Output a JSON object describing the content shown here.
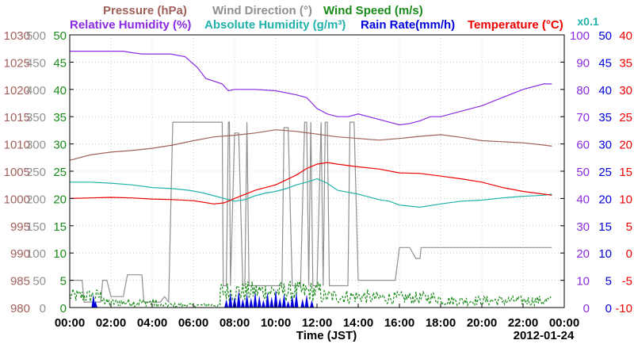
{
  "chart_data": {
    "type": "line",
    "title_lines": [
      [
        {
          "text": "Pressure (hPa)",
          "color": "#a0605a"
        },
        {
          "text": "Wind Direction (°)",
          "color": "#909090"
        },
        {
          "text": "Wind Speed (m/s)",
          "color": "#1a8a1a"
        }
      ],
      [
        {
          "text": "Relative Humidity (%)",
          "color": "#8a2be2"
        },
        {
          "text": "Absolute Humidity (g/m³)",
          "color": "#20b2aa"
        },
        {
          "text": "Rain Rate(mm/h)",
          "color": "#0000dd"
        },
        {
          "text": "Temperature (°C)",
          "color": "#ee0000"
        }
      ]
    ],
    "rain_scale_note": "x0.1",
    "xlabel": "Time (JST)",
    "date_label": "2012-01-24",
    "x_ticks": [
      "00:00",
      "02:00",
      "04:00",
      "06:00",
      "08:00",
      "10:00",
      "12:00",
      "14:00",
      "16:00",
      "18:00",
      "20:00",
      "22:00",
      "00:00"
    ],
    "xlim_hours": [
      0,
      24
    ],
    "left_axes": [
      {
        "name": "pressure",
        "color": "#a0605a",
        "ticks": [
          "1030",
          "1025",
          "1020",
          "1015",
          "1010",
          "1005",
          "1000",
          "995",
          "990",
          "985",
          "980"
        ]
      },
      {
        "name": "wind_direction",
        "color": "#909090",
        "ticks": [
          "500",
          "450",
          "400",
          "350",
          "300",
          "250",
          "200",
          "150",
          "100",
          "50",
          "0"
        ]
      },
      {
        "name": "wind_speed",
        "color": "#1a8a1a",
        "ticks": [
          "50",
          "45",
          "40",
          "35",
          "30",
          "25",
          "20",
          "15",
          "10",
          "5",
          "0"
        ]
      }
    ],
    "right_axes": [
      {
        "name": "relative_humidity",
        "color": "#8a2be2",
        "ticks": [
          "100",
          "90",
          "80",
          "70",
          "60",
          "50",
          "40",
          "30",
          "20",
          "10",
          "0"
        ]
      },
      {
        "name": "rain_rate",
        "color": "#0000dd",
        "ticks": [
          "50",
          "45",
          "40",
          "35",
          "30",
          "25",
          "20",
          "15",
          "10",
          "5",
          "0"
        ]
      },
      {
        "name": "temperature",
        "color": "#ee0000",
        "ticks": [
          "40",
          "35",
          "30",
          "25",
          "20",
          "15",
          "10",
          "5",
          "0",
          "-5",
          "-10"
        ]
      }
    ],
    "grid": true,
    "series": [
      {
        "name": "Relative Humidity (%)",
        "color": "#8a2be2",
        "axis_range": [
          0,
          100
        ],
        "x": [
          0,
          2.6,
          3,
          3.5,
          4.9,
          5.6,
          6.2,
          6.6,
          7.4,
          7.7,
          8,
          9,
          10,
          11,
          11.5,
          12,
          12.5,
          13,
          13.5,
          14,
          14.5,
          15,
          15.5,
          16,
          16.5,
          17,
          17.5,
          18,
          19,
          20,
          21,
          22,
          23,
          23.4
        ],
        "y": [
          94,
          94,
          93.5,
          93,
          93,
          92,
          88,
          84,
          82,
          79.5,
          80,
          80,
          79.5,
          78,
          77,
          73,
          71,
          70,
          70,
          71,
          70,
          69,
          68,
          67,
          67.5,
          68.5,
          70,
          70,
          72,
          74,
          77,
          80,
          82,
          82
        ]
      },
      {
        "name": "Pressure (hPa)",
        "color": "#a0605a",
        "axis_range": [
          980,
          1030
        ],
        "x": [
          0,
          1,
          2,
          3,
          4,
          5,
          6,
          7,
          8,
          9,
          10,
          11,
          12,
          13,
          14,
          15,
          16,
          17,
          18,
          19,
          20,
          21,
          22,
          23,
          23.4
        ],
        "y": [
          1007,
          1008,
          1008.5,
          1008.8,
          1009.2,
          1009.8,
          1010.6,
          1011.3,
          1011.6,
          1012,
          1012.6,
          1012.3,
          1011.8,
          1011.3,
          1011,
          1010.7,
          1011,
          1011.4,
          1011.7,
          1011.2,
          1010.6,
          1010.4,
          1010.2,
          1009.8,
          1009.6
        ]
      },
      {
        "name": "Absolute Humidity (g/m³)",
        "color": "#20b2aa",
        "axis_range": [
          0,
          50
        ],
        "x": [
          0,
          1,
          2,
          3,
          4,
          5,
          5.8,
          6.5,
          7,
          7.5,
          8,
          8.5,
          9,
          9.5,
          10,
          10.5,
          11,
          11.5,
          12,
          12.5,
          13,
          14,
          15,
          15.5,
          16,
          17,
          18,
          19,
          20,
          21,
          22,
          23,
          23.4
        ],
        "y": [
          23,
          23,
          22.8,
          22.5,
          22,
          21.8,
          21.5,
          21,
          20.5,
          20,
          19.5,
          19.8,
          20.5,
          21,
          21.3,
          21.8,
          22.5,
          23,
          23.6,
          22.8,
          21.5,
          20.8,
          19.8,
          19.5,
          18.8,
          18.4,
          19,
          19.5,
          19.7,
          20.1,
          20.4,
          20.6,
          20.8
        ]
      },
      {
        "name": "Temperature (°C)",
        "color": "#ee0000",
        "axis_range": [
          -10,
          40
        ],
        "x": [
          0,
          1,
          2,
          3,
          4,
          5,
          6,
          7,
          7.5,
          8,
          9,
          10,
          11,
          11.5,
          12,
          12.5,
          13,
          14,
          15,
          16,
          17,
          18,
          19,
          20,
          21,
          22,
          23,
          23.4
        ],
        "y": [
          10,
          10.1,
          10.2,
          10.1,
          9.9,
          9.8,
          9.6,
          9,
          9.2,
          10,
          11.5,
          12.5,
          14.3,
          15.5,
          16.3,
          16.6,
          16.3,
          15.8,
          15.4,
          14.7,
          14.6,
          14.1,
          13.6,
          13,
          12,
          11.3,
          10.8,
          10.6
        ]
      },
      {
        "name": "Wind Direction (°)",
        "color": "#909090",
        "axis_range": [
          0,
          500
        ],
        "x": [
          0,
          0.6,
          0.7,
          1.5,
          1.6,
          1.8,
          2.0,
          2.6,
          2.8,
          3.5,
          3.6,
          4.4,
          4.6,
          4.8,
          5.0,
          7.4,
          7.45,
          7.6,
          7.7,
          7.75,
          7.8,
          8.0,
          8.2,
          8.4,
          8.5,
          8.6,
          8.7,
          9,
          10,
          10.3,
          10.4,
          10.6,
          10.8,
          11.2,
          11.4,
          11.5,
          11.6,
          11.7,
          11.8,
          12,
          12.2,
          12.3,
          12.4,
          12.5,
          12.6,
          13,
          13.5,
          13.6,
          13.8,
          14,
          14.5,
          15,
          15.5,
          15.8,
          16,
          16.05,
          16.5,
          16.8,
          17,
          17.05,
          17.2,
          17.3,
          17.5,
          18,
          19,
          20,
          21,
          22,
          23,
          23.4
        ],
        "y": [
          50,
          50,
          10,
          10,
          50,
          50,
          20,
          20,
          60,
          60,
          10,
          10,
          20,
          10,
          340,
          340,
          40,
          40,
          340,
          340,
          40,
          320,
          320,
          40,
          40,
          340,
          40,
          40,
          40,
          40,
          330,
          330,
          40,
          40,
          340,
          340,
          40,
          340,
          40,
          40,
          340,
          40,
          340,
          340,
          40,
          40,
          40,
          340,
          340,
          50,
          50,
          50,
          50,
          50,
          110,
          110,
          110,
          90,
          90,
          110,
          110,
          110,
          110,
          110,
          110,
          110,
          110,
          110,
          110,
          110
        ]
      },
      {
        "name": "Wind Speed (m/s)",
        "color": "#1a8a1a",
        "axis_range": [
          0,
          50
        ],
        "dashed": true,
        "generator": {
          "seed": 12345,
          "step_hours": 0.05,
          "segments": [
            {
              "from": 0,
              "to": 1.7,
              "base": 1.6,
              "noise": 2.6
            },
            {
              "from": 1.7,
              "to": 4.2,
              "base": 0.6,
              "noise": 1.5
            },
            {
              "from": 4.2,
              "to": 7.3,
              "base": 0.3,
              "noise": 0.7
            },
            {
              "from": 7.3,
              "to": 12.2,
              "base": 2.2,
              "noise": 3.8
            },
            {
              "from": 12.2,
              "to": 14.5,
              "base": 1.5,
              "noise": 2.6
            },
            {
              "from": 14.5,
              "to": 18,
              "base": 1.3,
              "noise": 2.3
            },
            {
              "from": 18,
              "to": 23.4,
              "base": 0.9,
              "noise": 1.8
            }
          ]
        }
      },
      {
        "name": "Rain Rate(mm/h)",
        "color": "#0000dd",
        "axis_range": [
          0,
          50
        ],
        "type": "spikes",
        "x": [
          1.15,
          1.25,
          7.6,
          7.8,
          8.0,
          8.2,
          8.4,
          8.6,
          8.8,
          9.0,
          9.2,
          9.4,
          9.6,
          9.8,
          10.0,
          10.2,
          10.4,
          10.6,
          10.8,
          11.0,
          11.3,
          11.5,
          11.75
        ],
        "y": [
          2.4,
          1.2,
          1.5,
          2.8,
          2.0,
          3.2,
          1.6,
          2.6,
          1.8,
          3.0,
          2.2,
          1.4,
          2.8,
          2.0,
          3.4,
          1.8,
          2.6,
          1.2,
          2.2,
          2.8,
          1.6,
          2.4,
          1.4
        ]
      }
    ]
  }
}
